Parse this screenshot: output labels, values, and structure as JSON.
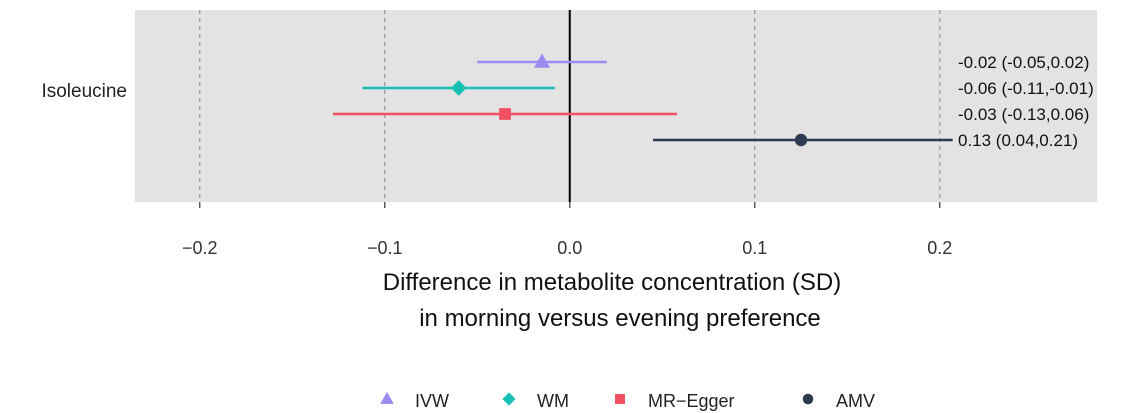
{
  "chart_data": {
    "type": "forest",
    "category": "Isoleucine",
    "xlabel_lines": [
      "Difference in metabolite concentration (SD)",
      "in morning versus evening preference"
    ],
    "xlim": [
      -0.235,
      0.285
    ],
    "xticks": [
      -0.2,
      -0.1,
      0.0,
      0.1,
      0.2
    ],
    "xtick_labels": [
      "−0.2",
      "−0.1",
      "0.0",
      "0.1",
      "0.2"
    ],
    "grid": "vertical dashed",
    "reference_line": 0.0,
    "legend_position": "bottom",
    "series": [
      {
        "name": "IVW",
        "estimate": -0.015,
        "lower": -0.05,
        "upper": 0.02,
        "label": "-0.02 (-0.05,0.02)",
        "color": "#9A8CF0",
        "shape": "triangle"
      },
      {
        "name": "WM",
        "estimate": -0.06,
        "lower": -0.112,
        "upper": -0.008,
        "label": "-0.06 (-0.11,-0.01)",
        "color": "#17C0B5",
        "shape": "diamond"
      },
      {
        "name": "MR−Egger",
        "estimate": -0.035,
        "lower": -0.128,
        "upper": 0.058,
        "label": "-0.03 (-0.13,0.06)",
        "color": "#F0505F",
        "shape": "square"
      },
      {
        "name": "AMV",
        "estimate": 0.125,
        "lower": 0.045,
        "upper": 0.207,
        "label": "0.13 (0.04,0.21)",
        "color": "#2E3A52",
        "shape": "circle"
      }
    ]
  }
}
